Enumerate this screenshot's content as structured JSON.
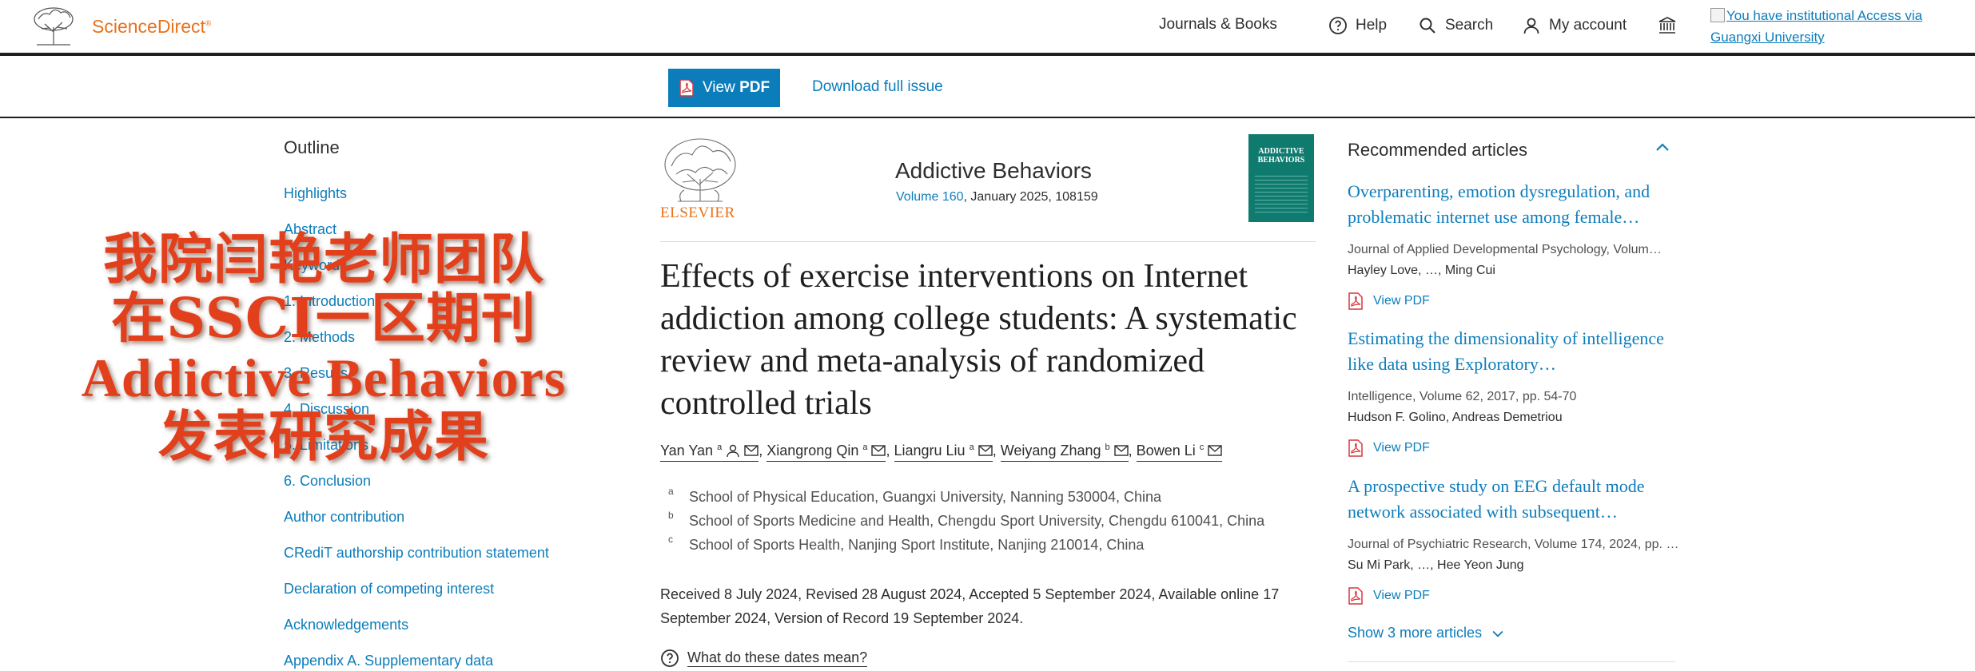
{
  "header": {
    "brand": "ScienceDirect",
    "brand_mark": "®",
    "nav": {
      "journals": "Journals & Books",
      "help": "Help",
      "search": "Search",
      "account": "My account"
    },
    "institution_link": "You have institutional Access via Guangxi University"
  },
  "toolbar": {
    "view_pdf_prefix": "View",
    "view_pdf_bold": "PDF",
    "download_issue": "Download full issue"
  },
  "outline": {
    "title": "Outline",
    "items": [
      "Highlights",
      "Abstract",
      "Keywords",
      "1. Introduction",
      "2. Methods",
      "3. Results",
      "4. Discussion",
      "5. Limitations",
      "6. Conclusion",
      "Author contribution",
      "CRediT authorship contribution statement",
      "Declaration of competing interest",
      "Acknowledgements",
      "Appendix A. Supplementary data"
    ]
  },
  "overlay": {
    "line1": "我院闫艳老师团队",
    "line2": "在SSCI一区期刊",
    "line3": "Addictive Behaviors",
    "line4": "发表研究成果"
  },
  "article": {
    "publisher": "ELSEVIER",
    "journal": "Addictive Behaviors",
    "volume_link": "Volume 160",
    "volume_rest": ", January 2025, 108159",
    "cover_text": "ADDICTIVE BEHAVIORS",
    "title": "Effects of exercise interventions on Internet addiction among college students: A systematic review and meta-analysis of randomized controlled trials",
    "authors": [
      {
        "name": "Yan Yan",
        "sup": "a"
      },
      {
        "name": "Xiangrong Qin",
        "sup": "a"
      },
      {
        "name": "Liangru Liu",
        "sup": "a"
      },
      {
        "name": "Weiyang Zhang",
        "sup": "b"
      },
      {
        "name": "Bowen Li",
        "sup": "c"
      }
    ],
    "affiliations": [
      {
        "sup": "a",
        "text": "School of Physical Education, Guangxi University, Nanning 530004, China"
      },
      {
        "sup": "b",
        "text": "School of Sports Medicine and Health, Chengdu Sport University, Chengdu 610041, China"
      },
      {
        "sup": "c",
        "text": "School of Sports Health, Nanjing Sport Institute, Nanjing 210014, China"
      }
    ],
    "dates": "Received 8 July 2024, Revised 28 August 2024, Accepted 5 September 2024, Available online 17 September 2024, Version of Record 19 September 2024.",
    "dates_question": "What do these dates mean?"
  },
  "recommended": {
    "title": "Recommended articles",
    "items": [
      {
        "title": "Overparenting, emotion dysregulation, and problematic internet use among female…",
        "journal": "Journal of Applied Developmental Psychology, Volum…",
        "authors": "Hayley Love, …, Ming Cui",
        "pdf": "View PDF"
      },
      {
        "title": "Estimating the dimensionality of intelligence like data using Exploratory…",
        "journal": "Intelligence, Volume 62, 2017, pp. 54-70",
        "authors": "Hudson F. Golino, Andreas Demetriou",
        "pdf": "View PDF"
      },
      {
        "title": "A prospective study on EEG default mode network associated with subsequent…",
        "journal": "Journal of Psychiatric Research, Volume 174, 2024, pp. …",
        "authors": "Su Mi Park, …, Hee Yeon Jung",
        "pdf": "View PDF"
      }
    ],
    "show_more": "Show 3 more articles"
  },
  "colors": {
    "link": "#0c7dbb",
    "brand": "#e9711c",
    "overlay": "#e2401c",
    "cover": "#0f7a6e"
  }
}
